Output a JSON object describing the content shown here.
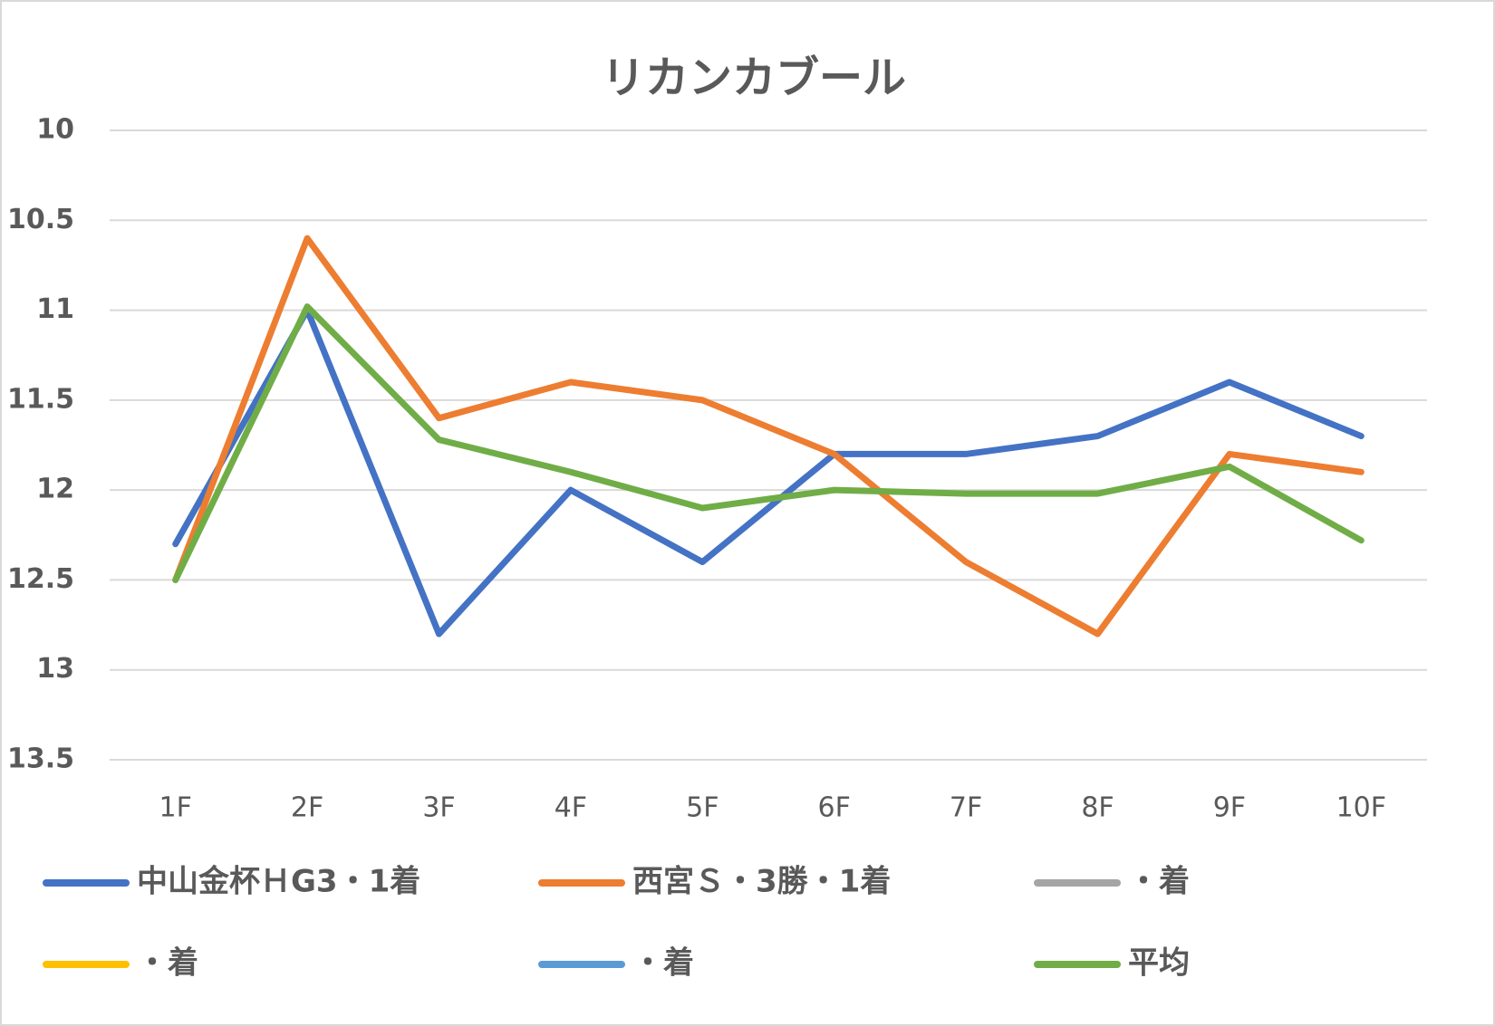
{
  "chart_data": {
    "type": "line",
    "title": "リカンカブール",
    "categories": [
      "1F",
      "2F",
      "3F",
      "4F",
      "5F",
      "6F",
      "7F",
      "8F",
      "9F",
      "10F"
    ],
    "series": [
      {
        "name": "中山金杯ＨG3・1着",
        "color": "#4472c4",
        "values": [
          12.3,
          11.0,
          12.8,
          12.0,
          12.4,
          11.8,
          11.8,
          11.7,
          11.4,
          11.7
        ]
      },
      {
        "name": "西宮Ｓ・3勝・1着",
        "color": "#ed7d31",
        "values": [
          12.5,
          10.6,
          11.6,
          11.4,
          11.5,
          11.8,
          12.4,
          12.8,
          11.8,
          11.9
        ]
      },
      {
        "name": "・着",
        "color": "#a5a5a5",
        "values": [
          null,
          null,
          null,
          null,
          null,
          null,
          null,
          null,
          null,
          null
        ]
      },
      {
        "name": "・着",
        "color": "#ffc000",
        "values": [
          null,
          null,
          null,
          null,
          null,
          null,
          null,
          null,
          null,
          null
        ]
      },
      {
        "name": "・着",
        "color": "#5b9bd5",
        "values": [
          null,
          null,
          null,
          null,
          null,
          null,
          null,
          null,
          null,
          null
        ]
      },
      {
        "name": "平均",
        "color": "#70ad47",
        "values": [
          12.5,
          10.98,
          11.72,
          11.9,
          12.1,
          12.0,
          12.02,
          12.02,
          11.87,
          12.28
        ]
      }
    ],
    "ylim": [
      10,
      13.5
    ],
    "yticks": [
      10,
      10.5,
      11,
      11.5,
      12,
      12.5,
      13,
      13.5
    ],
    "y_inverted": true,
    "grid": true,
    "legend": "bottom"
  }
}
